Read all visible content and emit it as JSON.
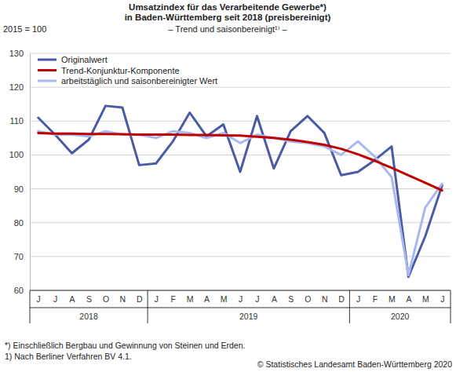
{
  "chart_data": {
    "type": "line",
    "title": [
      "Umsatzindex für das Verarbeitende Gewerbe*)",
      "in Baden-Württemberg seit 2018 (preisbereinigt)"
    ],
    "subtitle": "– Trend und saisonbereinigt¹⁾ –",
    "ylabel": "2015 = 100",
    "categories": [
      "J",
      "J",
      "A",
      "S",
      "O",
      "N",
      "D",
      "J",
      "F",
      "M",
      "A",
      "M",
      "J",
      "J",
      "A",
      "S",
      "O",
      "N",
      "D",
      "J",
      "F",
      "M",
      "A",
      "M",
      "J"
    ],
    "year_groups": [
      {
        "label": "2018",
        "count": 7
      },
      {
        "label": "2019",
        "count": 12
      },
      {
        "label": "2020",
        "count": 6
      }
    ],
    "series": [
      {
        "name": "Originalwert",
        "color": "#4a5ba6",
        "values": [
          111,
          106,
          100.5,
          104.5,
          114.5,
          114,
          97,
          97.5,
          104,
          112.5,
          105.5,
          109,
          95,
          111.5,
          96,
          107,
          111.5,
          106.5,
          94,
          95,
          98.5,
          102.5,
          64,
          76,
          91
        ]
      },
      {
        "name": "Trend-Konjunktur-Komponente",
        "color": "#c00000",
        "values": [
          106.5,
          106.3,
          106.3,
          106.2,
          106.2,
          106.1,
          106,
          106,
          106,
          105.9,
          105.9,
          105.8,
          105.7,
          105.4,
          105,
          104.5,
          103.8,
          103,
          101.8,
          100.2,
          98.3,
          96.2,
          94,
          91.8,
          89.5
        ]
      },
      {
        "name": "arbeitstäglich und saisonbereinigter Wert",
        "color": "#a9b8f0",
        "values": [
          107,
          106,
          106,
          105.5,
          107,
          106,
          106,
          105,
          107,
          106.5,
          105,
          106.5,
          103.5,
          106,
          105,
          104,
          103.5,
          102.5,
          100,
          104,
          99.5,
          93.5,
          64.5,
          84.5,
          91.5
        ]
      }
    ],
    "ylim": [
      60,
      130
    ],
    "yticks": [
      60,
      70,
      80,
      90,
      100,
      110,
      120,
      130
    ],
    "grid": true,
    "legend": "top-left",
    "footnotes": [
      "*) Einschließlich Bergbau und Gewinnung von Steinen und Erden.",
      "1) Nach Berliner Verfahren BV 4.1."
    ],
    "source": "© Statistisches Landesamt Baden-Württemberg 2020"
  }
}
